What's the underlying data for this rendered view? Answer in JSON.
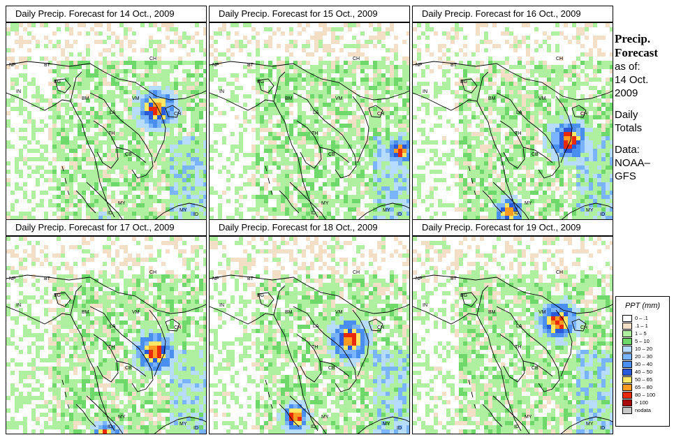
{
  "panels": [
    {
      "title": "Daily Precip. Forecast for  14 Oct., 2009",
      "storms": [
        [
          212,
          120,
          "hi"
        ],
        [
          134,
          294,
          "mid"
        ]
      ]
    },
    {
      "title": "Daily Precip. Forecast for  15 Oct., 2009",
      "storms": [
        [
          270,
          180,
          "mid"
        ]
      ]
    },
    {
      "title": "Daily Precip. Forecast for  16 Oct., 2009",
      "storms": [
        [
          220,
          165,
          "hi"
        ],
        [
          135,
          268,
          "mid"
        ]
      ]
    },
    {
      "title": "Daily Precip. Forecast for  17 Oct., 2009",
      "storms": [
        [
          210,
          162,
          "hi"
        ],
        [
          140,
          282,
          "mid"
        ]
      ]
    },
    {
      "title": "Daily Precip. Forecast for  18 Oct., 2009",
      "storms": [
        [
          198,
          145,
          "hi"
        ],
        [
          120,
          255,
          "mid"
        ]
      ]
    },
    {
      "title": "Daily Precip. Forecast for  19 Oct., 2009",
      "storms": [
        [
          205,
          118,
          "hi"
        ]
      ]
    }
  ],
  "map_labels": [
    "NP",
    "BT",
    "BG",
    "IN",
    "CH",
    "BM",
    "VM",
    "LA",
    "TH",
    "CB",
    "CH",
    "MY",
    "MY",
    "ID",
    "ID"
  ],
  "side": {
    "title1": "Precip.",
    "title2": "Forecast",
    "asof": "as of:",
    "date1": "14 Oct.",
    "date2": "2009",
    "daily1": "Daily",
    "daily2": "Totals",
    "data1": "Data:",
    "data2": "NOAA–",
    "data3": "GFS"
  },
  "legend": {
    "title": "PPT (mm)",
    "items": [
      {
        "label": "0 – .1",
        "color": "#ffffff"
      },
      {
        "label": ".1 – 1",
        "color": "#f3dfc6"
      },
      {
        "label": "1 – 5",
        "color": "#aef0a0"
      },
      {
        "label": "5 – 10",
        "color": "#6ed86a"
      },
      {
        "label": "10 – 20",
        "color": "#b6dcff"
      },
      {
        "label": "20 – 30",
        "color": "#7ab4ff"
      },
      {
        "label": "30 – 40",
        "color": "#4a8ef0"
      },
      {
        "label": "40 – 50",
        "color": "#2a5ad8"
      },
      {
        "label": "50 – 65",
        "color": "#ffe866"
      },
      {
        "label": "65 – 80",
        "color": "#ff9a22"
      },
      {
        "label": "80 – 100",
        "color": "#e82a0a"
      },
      {
        "label": "> 100",
        "color": "#a80a0a"
      },
      {
        "label": "nodata",
        "color": "#c8c8c8"
      }
    ]
  }
}
